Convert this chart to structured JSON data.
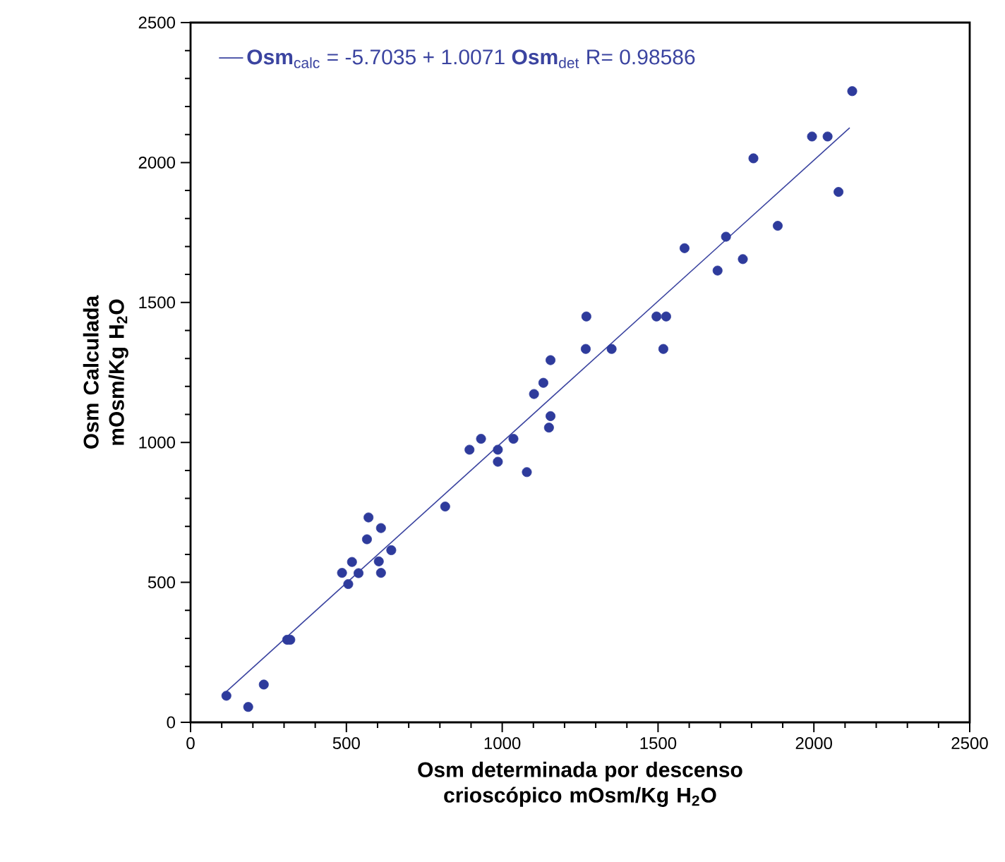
{
  "chart_data": {
    "type": "scatter",
    "xlabel": "Osm determinada por descenso crioscópico mOsm/Kg H$_{2}$O",
    "ylabel": "Osm Calculada mOsm/Kg H$_{2}$O",
    "xlim": [
      0,
      2500
    ],
    "ylim": [
      0,
      2500
    ],
    "xticks": [
      0,
      500,
      1000,
      1500,
      2000,
      2500
    ],
    "yticks": [
      0,
      500,
      1000,
      1500,
      2000,
      2500
    ],
    "grid": false,
    "legend": "top",
    "series": [
      {
        "marker": "circle",
        "color": "#2e3b9c",
        "x": [
          115,
          185,
          235,
          310,
          320,
          486,
          506,
          518,
          539,
          566,
          571,
          604,
          611,
          611,
          644,
          817,
          895,
          932,
          986,
          986,
          1036,
          1079,
          1102,
          1132,
          1155,
          1155,
          1150,
          1268,
          1351,
          1517,
          1270,
          1495,
          1526,
          1585,
          1691,
          1718,
          1772,
          1806,
          1884,
          1994,
          2044,
          2079,
          2123
        ],
        "values": [
          95,
          55,
          135,
          295,
          295,
          534,
          494,
          573,
          533,
          654,
          732,
          575,
          694,
          534,
          615,
          771,
          974,
          1013,
          974,
          931,
          1013,
          894,
          1173,
          1213,
          1294,
          1094,
          1053,
          1334,
          1334,
          1334,
          1450,
          1450,
          1450,
          1694,
          1614,
          1735,
          1655,
          2015,
          1774,
          2093,
          2093,
          1895,
          2255
        ]
      },
      {
        "type": "line",
        "name": "**Osm**$_{calc}$ = -5.7035 + 1.0071 **Osm**$_{det}$  R= 0.98586",
        "color": "#3b44a0",
        "line_style": "solid",
        "marker": "none",
        "x": [
          115,
          2115
        ],
        "values": [
          110,
          2124
        ]
      }
    ]
  }
}
